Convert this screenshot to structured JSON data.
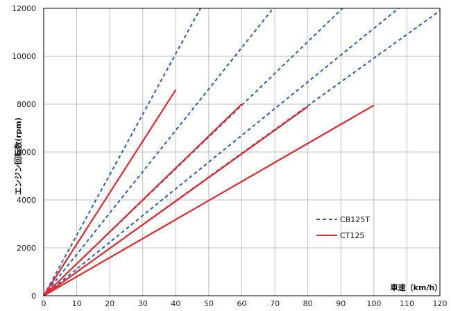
{
  "chart_data": {
    "type": "line",
    "title": "",
    "xlabel": "車速（km/h）",
    "ylabel": "エンジン回転数(rpm)",
    "xlim": [
      0,
      120
    ],
    "ylim": [
      0,
      12000
    ],
    "x_ticks": [
      0,
      10,
      20,
      30,
      40,
      50,
      60,
      70,
      80,
      90,
      100,
      110,
      120
    ],
    "y_ticks": [
      0,
      2000,
      4000,
      6000,
      8000,
      10000,
      12000
    ],
    "grid": true,
    "legend_position": "right",
    "legend": [
      {
        "name": "CB125T",
        "style": "dashed",
        "color": "#1f5fbf"
      },
      {
        "name": "CT125",
        "style": "solid",
        "color": "#e8262b"
      }
    ],
    "series": [
      {
        "group": "CB125T",
        "style": "dashed",
        "color": "#1f5fbf",
        "points": [
          [
            0,
            0
          ],
          [
            47.5,
            12000
          ]
        ]
      },
      {
        "group": "CB125T",
        "style": "dashed",
        "color": "#1f5fbf",
        "points": [
          [
            0,
            0
          ],
          [
            69.5,
            12000
          ]
        ]
      },
      {
        "group": "CB125T",
        "style": "dashed",
        "color": "#1f5fbf",
        "points": [
          [
            0,
            0
          ],
          [
            90.5,
            12000
          ]
        ]
      },
      {
        "group": "CB125T",
        "style": "dashed",
        "color": "#1f5fbf",
        "points": [
          [
            0,
            0
          ],
          [
            107.5,
            12000
          ]
        ]
      },
      {
        "group": "CB125T",
        "style": "dashed",
        "color": "#1f5fbf",
        "points": [
          [
            0,
            0
          ],
          [
            120,
            11900
          ]
        ]
      },
      {
        "group": "CT125",
        "style": "solid",
        "color": "#e8262b",
        "points": [
          [
            0,
            0
          ],
          [
            40,
            8600
          ]
        ]
      },
      {
        "group": "CT125",
        "style": "solid",
        "color": "#e8262b",
        "points": [
          [
            0,
            0
          ],
          [
            60,
            8000
          ]
        ]
      },
      {
        "group": "CT125",
        "style": "solid",
        "color": "#e8262b",
        "points": [
          [
            0,
            0
          ],
          [
            80,
            7900
          ]
        ]
      },
      {
        "group": "CT125",
        "style": "solid",
        "color": "#e8262b",
        "points": [
          [
            0,
            0
          ],
          [
            100,
            7950
          ]
        ]
      }
    ]
  }
}
